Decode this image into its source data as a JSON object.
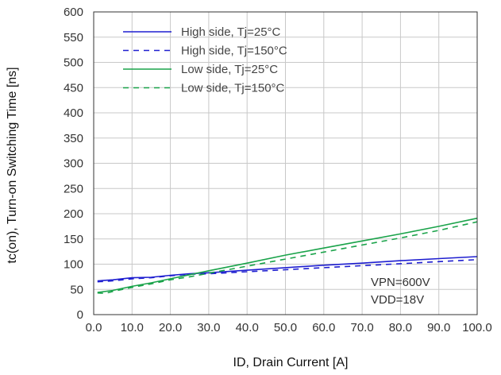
{
  "chart_data": {
    "type": "line",
    "title": "",
    "xlabel": "ID, Drain Current [A]",
    "ylabel": "tc(on), Turn-on Switching Time [ns]",
    "xlim": [
      0,
      100
    ],
    "ylim": [
      0,
      600
    ],
    "xticks": [
      "0.0",
      "10.0",
      "20.0",
      "30.0",
      "40.0",
      "50.0",
      "60.0",
      "70.0",
      "80.0",
      "90.0",
      "100.0"
    ],
    "yticks": [
      "0",
      "50",
      "100",
      "150",
      "200",
      "250",
      "300",
      "350",
      "400",
      "450",
      "500",
      "550",
      "600"
    ],
    "grid": true,
    "legend_position": "top-left",
    "annotations": [
      "VPN=600V",
      "VDD=18V"
    ],
    "series": [
      {
        "name": "High side, Tj=25°C",
        "color": "#1f1fd0",
        "dash": "solid",
        "x": [
          1,
          5,
          10,
          15,
          20,
          25,
          30,
          40,
          50,
          60,
          70,
          80,
          90,
          100
        ],
        "y": [
          67,
          69,
          73,
          74,
          78,
          81,
          83,
          88,
          93,
          98,
          102,
          107,
          111,
          115
        ]
      },
      {
        "name": "High side, Tj=150°C",
        "color": "#1f1fd0",
        "dash": "dashed",
        "x": [
          1,
          5,
          10,
          15,
          20,
          25,
          30,
          40,
          50,
          60,
          70,
          80,
          90,
          100
        ],
        "y": [
          65,
          67,
          71,
          73,
          77,
          80,
          81,
          85,
          89,
          93,
          97,
          101,
          105,
          109
        ]
      },
      {
        "name": "Low side, Tj=25°C",
        "color": "#1aa34a",
        "dash": "solid",
        "x": [
          1,
          5,
          10,
          15,
          20,
          25,
          30,
          40,
          50,
          60,
          70,
          80,
          90,
          100
        ],
        "y": [
          44,
          48,
          56,
          63,
          71,
          79,
          87,
          102,
          118,
          132,
          146,
          160,
          175,
          191
        ]
      },
      {
        "name": "Low side, Tj=150°C",
        "color": "#1aa34a",
        "dash": "dashed",
        "x": [
          1,
          3,
          5,
          10,
          15,
          20,
          25,
          30,
          40,
          50,
          60,
          70,
          80,
          90,
          100
        ],
        "y": [
          43,
          42,
          46,
          54,
          61,
          69,
          75,
          82,
          96,
          110,
          124,
          138,
          152,
          167,
          184
        ]
      }
    ]
  }
}
